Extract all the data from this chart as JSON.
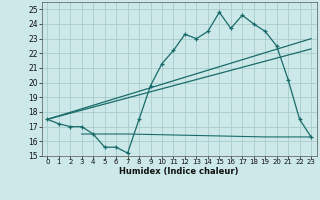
{
  "xlabel": "Humidex (Indice chaleur)",
  "bg_color": "#cce8e8",
  "grid_color": "#aacccc",
  "line_color": "#1a6b6b",
  "xlim": [
    -0.5,
    23.5
  ],
  "ylim": [
    15,
    25.5
  ],
  "xticks": [
    0,
    1,
    2,
    3,
    4,
    5,
    6,
    7,
    8,
    9,
    10,
    11,
    12,
    13,
    14,
    15,
    16,
    17,
    18,
    19,
    20,
    21,
    22,
    23
  ],
  "yticks": [
    15,
    16,
    17,
    18,
    19,
    20,
    21,
    22,
    23,
    24,
    25
  ],
  "line1_x": [
    0,
    1,
    2,
    3,
    4,
    5,
    6,
    7,
    8,
    9,
    10,
    11,
    12,
    13,
    14,
    15,
    16,
    17,
    18,
    19,
    20,
    21,
    22,
    23
  ],
  "line1_y": [
    17.5,
    17.2,
    17.0,
    17.0,
    16.5,
    15.6,
    15.6,
    15.2,
    17.5,
    19.8,
    21.3,
    22.2,
    23.3,
    23.0,
    23.5,
    24.8,
    23.7,
    24.6,
    24.0,
    23.5,
    22.5,
    20.2,
    17.5,
    16.3
  ],
  "line2_x": [
    0,
    23
  ],
  "line2_y": [
    17.5,
    23.0
  ],
  "line3_x": [
    0,
    23
  ],
  "line3_y": [
    17.5,
    22.3
  ],
  "line4_x": [
    3,
    7,
    19,
    23
  ],
  "line4_y": [
    16.5,
    16.5,
    16.3,
    16.3
  ]
}
